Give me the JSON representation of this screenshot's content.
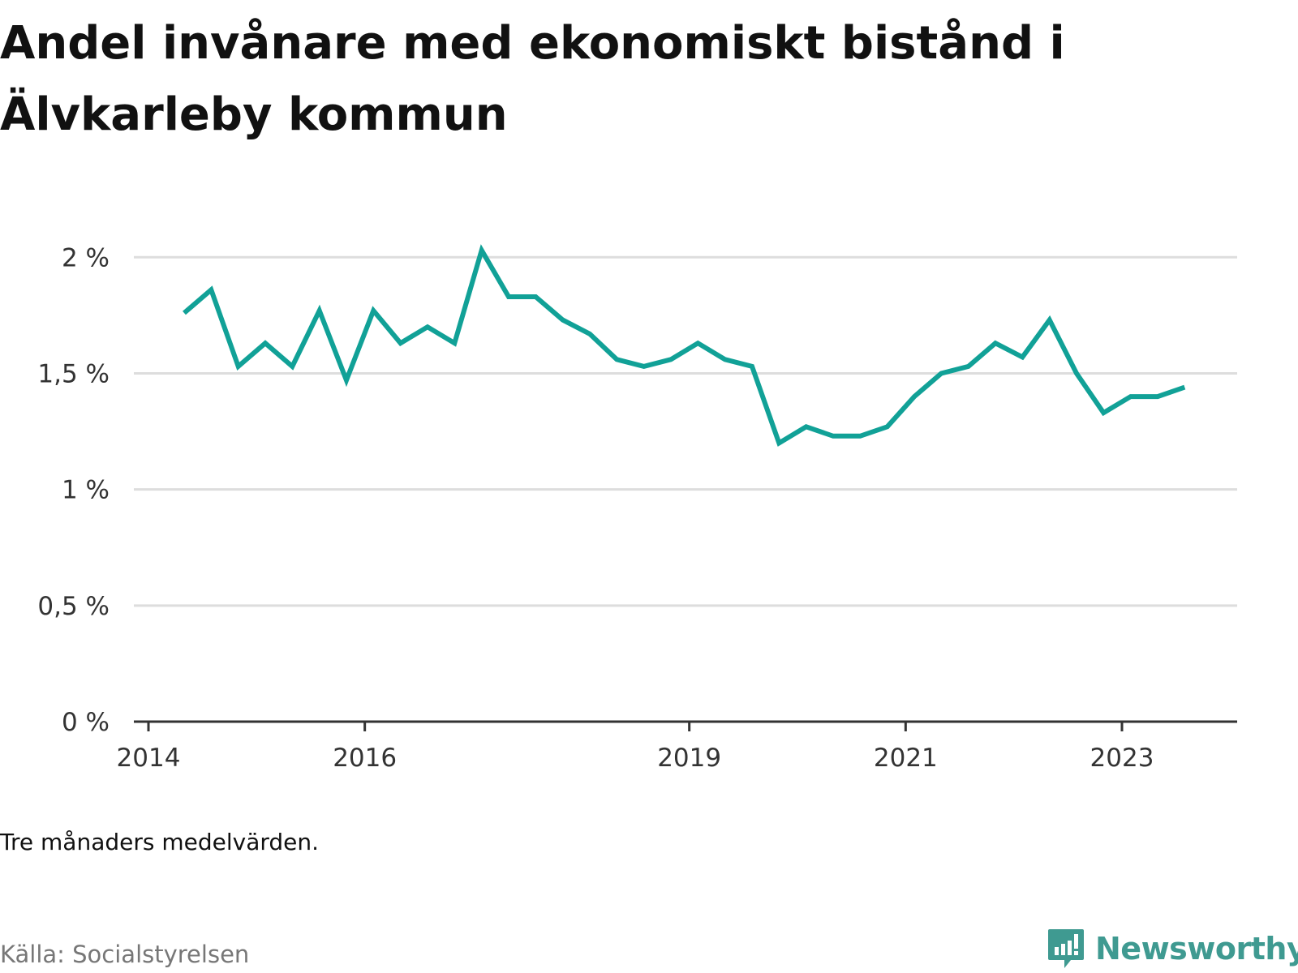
{
  "title": "Andel invånare med ekonomiskt bistånd i Älvkarleby kommun",
  "note": "Tre månaders medelvärden.",
  "source": "Källa: Socialstyrelsen",
  "brand": "Newsworthy",
  "colors": {
    "line": "#11a197",
    "grid": "#dddddd",
    "axis": "#333333",
    "brand": "#3f9a91"
  },
  "chart_data": {
    "type": "line",
    "x_ticks": [
      2014,
      2016,
      2019,
      2021,
      2023
    ],
    "x_tick_labels": [
      "2014",
      "2016",
      "2019",
      "2021",
      "2023"
    ],
    "y_ticks": [
      0,
      0.5,
      1,
      1.5,
      2
    ],
    "y_tick_labels": [
      "0 %",
      "0,5 %",
      "1 %",
      "1,5 %",
      "2 %"
    ],
    "xlim": [
      2014.0,
      2024.2
    ],
    "ylim": [
      0,
      2.2
    ],
    "grid": true,
    "series": [
      {
        "x": [
          2014.33,
          2014.58,
          2014.83,
          2015.08,
          2015.33,
          2015.58,
          2015.83,
          2016.08,
          2016.33,
          2016.58,
          2016.83,
          2017.08,
          2017.33,
          2017.58,
          2017.83,
          2018.08,
          2018.33,
          2018.58,
          2018.83,
          2019.08,
          2019.33,
          2019.58,
          2019.83,
          2020.08,
          2020.33,
          2020.58,
          2020.83,
          2021.08,
          2021.33,
          2021.58,
          2021.83,
          2022.08,
          2022.33,
          2022.58,
          2022.83,
          2023.08,
          2023.33,
          2023.58
        ],
        "y": [
          1.76,
          1.86,
          1.53,
          1.63,
          1.53,
          1.77,
          1.47,
          1.77,
          1.63,
          1.7,
          1.63,
          2.03,
          1.83,
          1.83,
          1.73,
          1.67,
          1.56,
          1.53,
          1.56,
          1.63,
          1.56,
          1.53,
          1.2,
          1.27,
          1.23,
          1.23,
          1.27,
          1.4,
          1.5,
          1.53,
          1.63,
          1.57,
          1.73,
          1.5,
          1.33,
          1.4,
          1.4,
          1.44
        ]
      }
    ]
  }
}
